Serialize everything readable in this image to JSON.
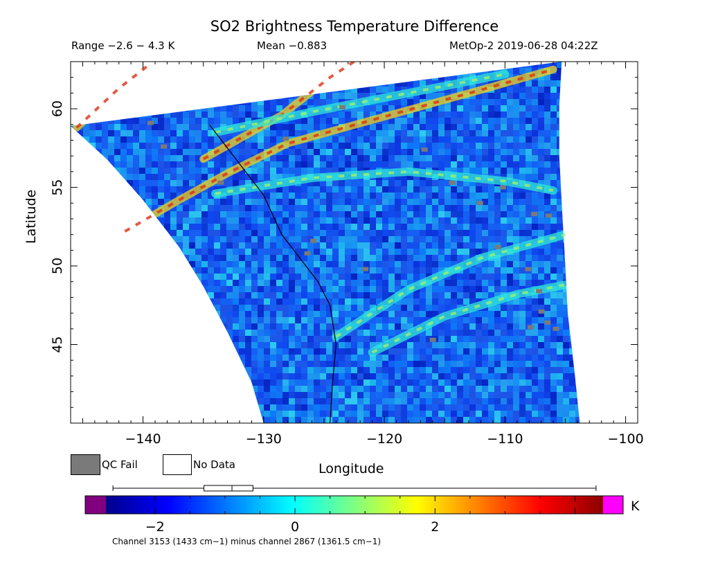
{
  "header": {
    "title": "SO2 Brightness Temperature Difference",
    "range": "Range −2.6 − 4.3 K",
    "mean": "Mean −0.883",
    "satellite_time": "MetOp-2 2019-06-28 04:22Z"
  },
  "legend": {
    "qc_fail": "QC Fail",
    "no_data": "No Data",
    "qc_fail_color": "#7a7a7a",
    "no_data_color": "#ffffff"
  },
  "colorbar": {
    "unit": "K",
    "min": -2.7,
    "max": 4.4,
    "ticks": [
      -2,
      0,
      2
    ],
    "tick_labels": [
      "−2",
      "0",
      "2"
    ],
    "box_whisker": {
      "min": -2.6,
      "q1": -1.3,
      "median": -0.9,
      "q3": -0.6,
      "max": 4.3
    },
    "underflow_color": "#800080",
    "overflow_color": "#ff00ff",
    "colormap": [
      "#00008b",
      "#0000ff",
      "#0080ff",
      "#00ffff",
      "#80ff80",
      "#ffff00",
      "#ff8000",
      "#ff0000",
      "#8b0000"
    ]
  },
  "footnote": "Channel 3153 (1433 cm−1) minus channel 2867 (1361.5 cm−1)",
  "chart_data": {
    "type": "heatmap",
    "title": "SO2 Brightness Temperature Difference",
    "xlabel": "Longitude",
    "ylabel": "Latitude",
    "xlim": [
      -146,
      -99
    ],
    "ylim": [
      40,
      63
    ],
    "xticks": [
      -140,
      -130,
      -120,
      -110,
      -100
    ],
    "xtick_labels": [
      "−140",
      "−130",
      "−120",
      "−110",
      "−100"
    ],
    "yticks": [
      45,
      50,
      55,
      60
    ],
    "ytick_labels": [
      "45",
      "50",
      "55",
      "60"
    ],
    "value_range": [
      -2.6,
      4.3
    ],
    "mean": -0.883,
    "units": "K",
    "swath": {
      "west_edge": [
        [
          -146,
          58.9
        ],
        [
          -143,
          56.8
        ],
        [
          -140,
          54.2
        ],
        [
          -137,
          51.2
        ],
        [
          -135,
          48.7
        ],
        [
          -133,
          45.8
        ],
        [
          -131,
          42.6
        ],
        [
          -130,
          40
        ]
      ],
      "east_edge": [
        [
          -105.3,
          63
        ],
        [
          -105.5,
          60.2
        ],
        [
          -105.5,
          57
        ],
        [
          -105.3,
          54
        ],
        [
          -105,
          50
        ],
        [
          -104.8,
          47
        ],
        [
          -104.2,
          43
        ],
        [
          -103.8,
          40
        ]
      ]
    },
    "features": [
      {
        "type": "high_band",
        "points": [
          [
            -145.5,
            58.8
          ],
          [
            -142,
            61.3
          ],
          [
            -139.5,
            62.8
          ]
        ]
      },
      {
        "type": "high_band",
        "points": [
          [
            -141.5,
            52.2
          ],
          [
            -137,
            54.2
          ],
          [
            -133,
            55.9
          ],
          [
            -128,
            57.8
          ],
          [
            -120,
            59.5
          ],
          [
            -112,
            61.2
          ],
          [
            -106,
            62.5
          ]
        ]
      },
      {
        "type": "high_band",
        "points": [
          [
            -135,
            56.8
          ],
          [
            -128.5,
            59.6
          ],
          [
            -124.5,
            62
          ],
          [
            -122.5,
            63
          ]
        ]
      },
      {
        "type": "elevated_band",
        "points": [
          [
            -134,
            58.5
          ],
          [
            -126,
            59.8
          ],
          [
            -118,
            61
          ],
          [
            -110,
            62.2
          ]
        ]
      },
      {
        "type": "elevated_band",
        "points": [
          [
            -134,
            54.6
          ],
          [
            -126,
            55.6
          ],
          [
            -118,
            56
          ],
          [
            -110,
            55.4
          ],
          [
            -106,
            54.8
          ]
        ]
      },
      {
        "type": "elevated_band",
        "points": [
          [
            -124,
            45.5
          ],
          [
            -118,
            48.5
          ],
          [
            -112,
            50.5
          ],
          [
            -105,
            52
          ]
        ]
      },
      {
        "type": "elevated_band",
        "points": [
          [
            -121,
            44.5
          ],
          [
            -115,
            46.8
          ],
          [
            -109,
            48.2
          ],
          [
            -105,
            48.8
          ]
        ]
      }
    ],
    "qc_fail_pixels": [
      [
        -139.4,
        59.1
      ],
      [
        -138.3,
        57.6
      ],
      [
        -133.6,
        55.3
      ],
      [
        -128.2,
        58.1
      ],
      [
        -123.5,
        60.1
      ],
      [
        -116.7,
        57.4
      ],
      [
        -114.4,
        55.3
      ],
      [
        -112.1,
        54.0
      ],
      [
        -110.2,
        55.0
      ],
      [
        -107.6,
        53.3
      ],
      [
        -106.4,
        53.2
      ],
      [
        -110.6,
        51.2
      ],
      [
        -108.1,
        49.8
      ],
      [
        -107.2,
        48.4
      ],
      [
        -107.0,
        47.1
      ],
      [
        -106.5,
        46.4
      ],
      [
        -105.8,
        46.0
      ],
      [
        -107.9,
        46.1
      ],
      [
        -126.4,
        50.8
      ],
      [
        -125.9,
        51.6
      ],
      [
        -121.6,
        49.8
      ],
      [
        -116.0,
        45.3
      ]
    ]
  }
}
